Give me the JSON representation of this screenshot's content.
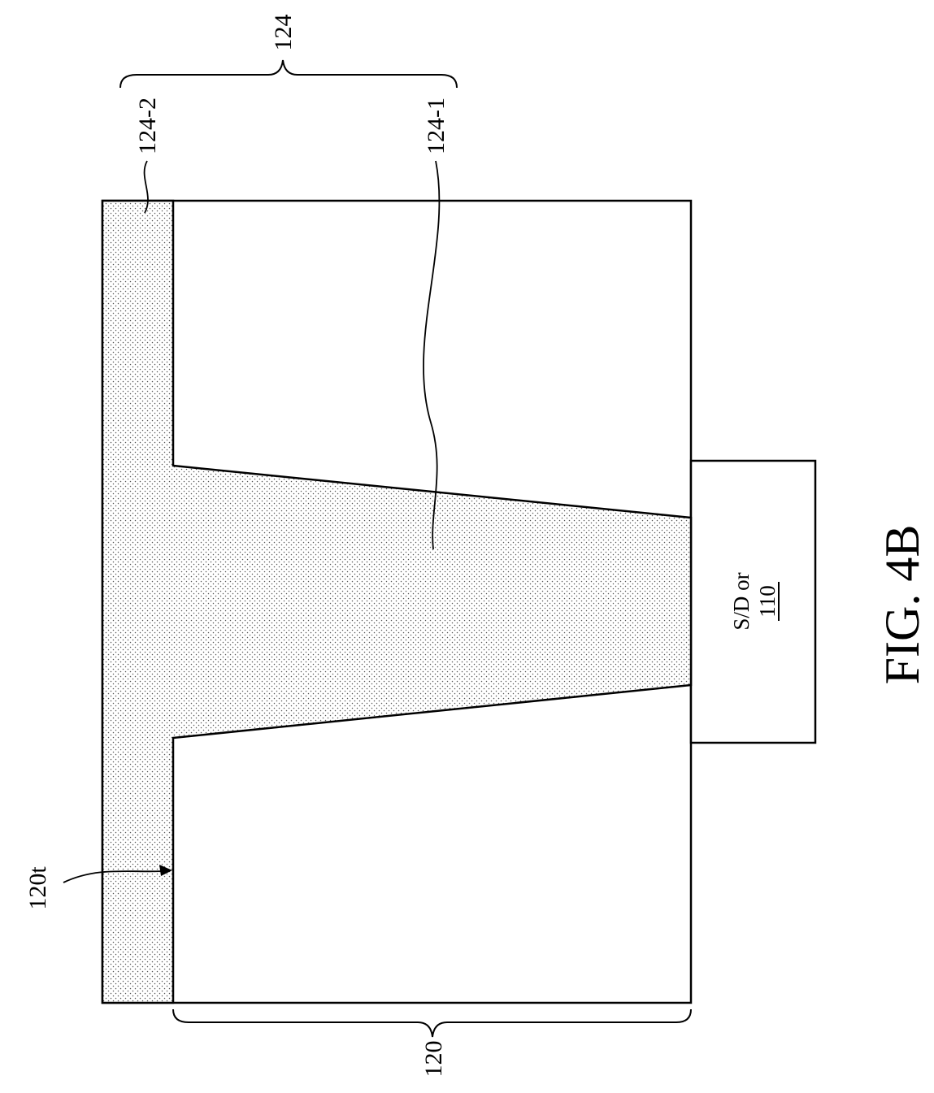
{
  "figure": {
    "caption": "FIG. 4B",
    "colors": {
      "stroke": "#000000",
      "background": "#ffffff",
      "stipple": "#555555"
    }
  },
  "labels": {
    "layer_124": "124",
    "layer_124_2": "124-2",
    "layer_124_1": "124-1",
    "top_surface_120t": "120t",
    "dielectric_120": "120",
    "sd_line1": "S/D or",
    "sd_ref": "110"
  }
}
